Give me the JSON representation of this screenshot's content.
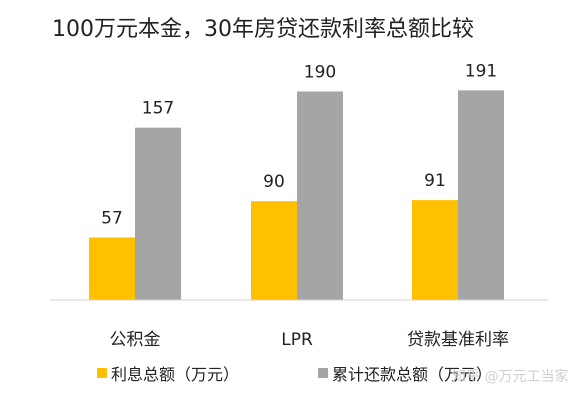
{
  "chart_data": {
    "type": "bar",
    "title": "100万元本金，30年房贷还款利率总额比较",
    "categories": [
      "公积金",
      "LPR",
      "贷款基准利率"
    ],
    "series": [
      {
        "name": "利息总额（万元）",
        "values": [
          57,
          90,
          91
        ],
        "color": "#FFC000"
      },
      {
        "name": "累计还款总额（万元）",
        "values": [
          157,
          190,
          191
        ],
        "color": "#A5A5A5"
      }
    ],
    "ylim": [
      0,
      205
    ],
    "grid": false,
    "legend": "bottom",
    "watermark": "知乎 @万元工当家"
  }
}
